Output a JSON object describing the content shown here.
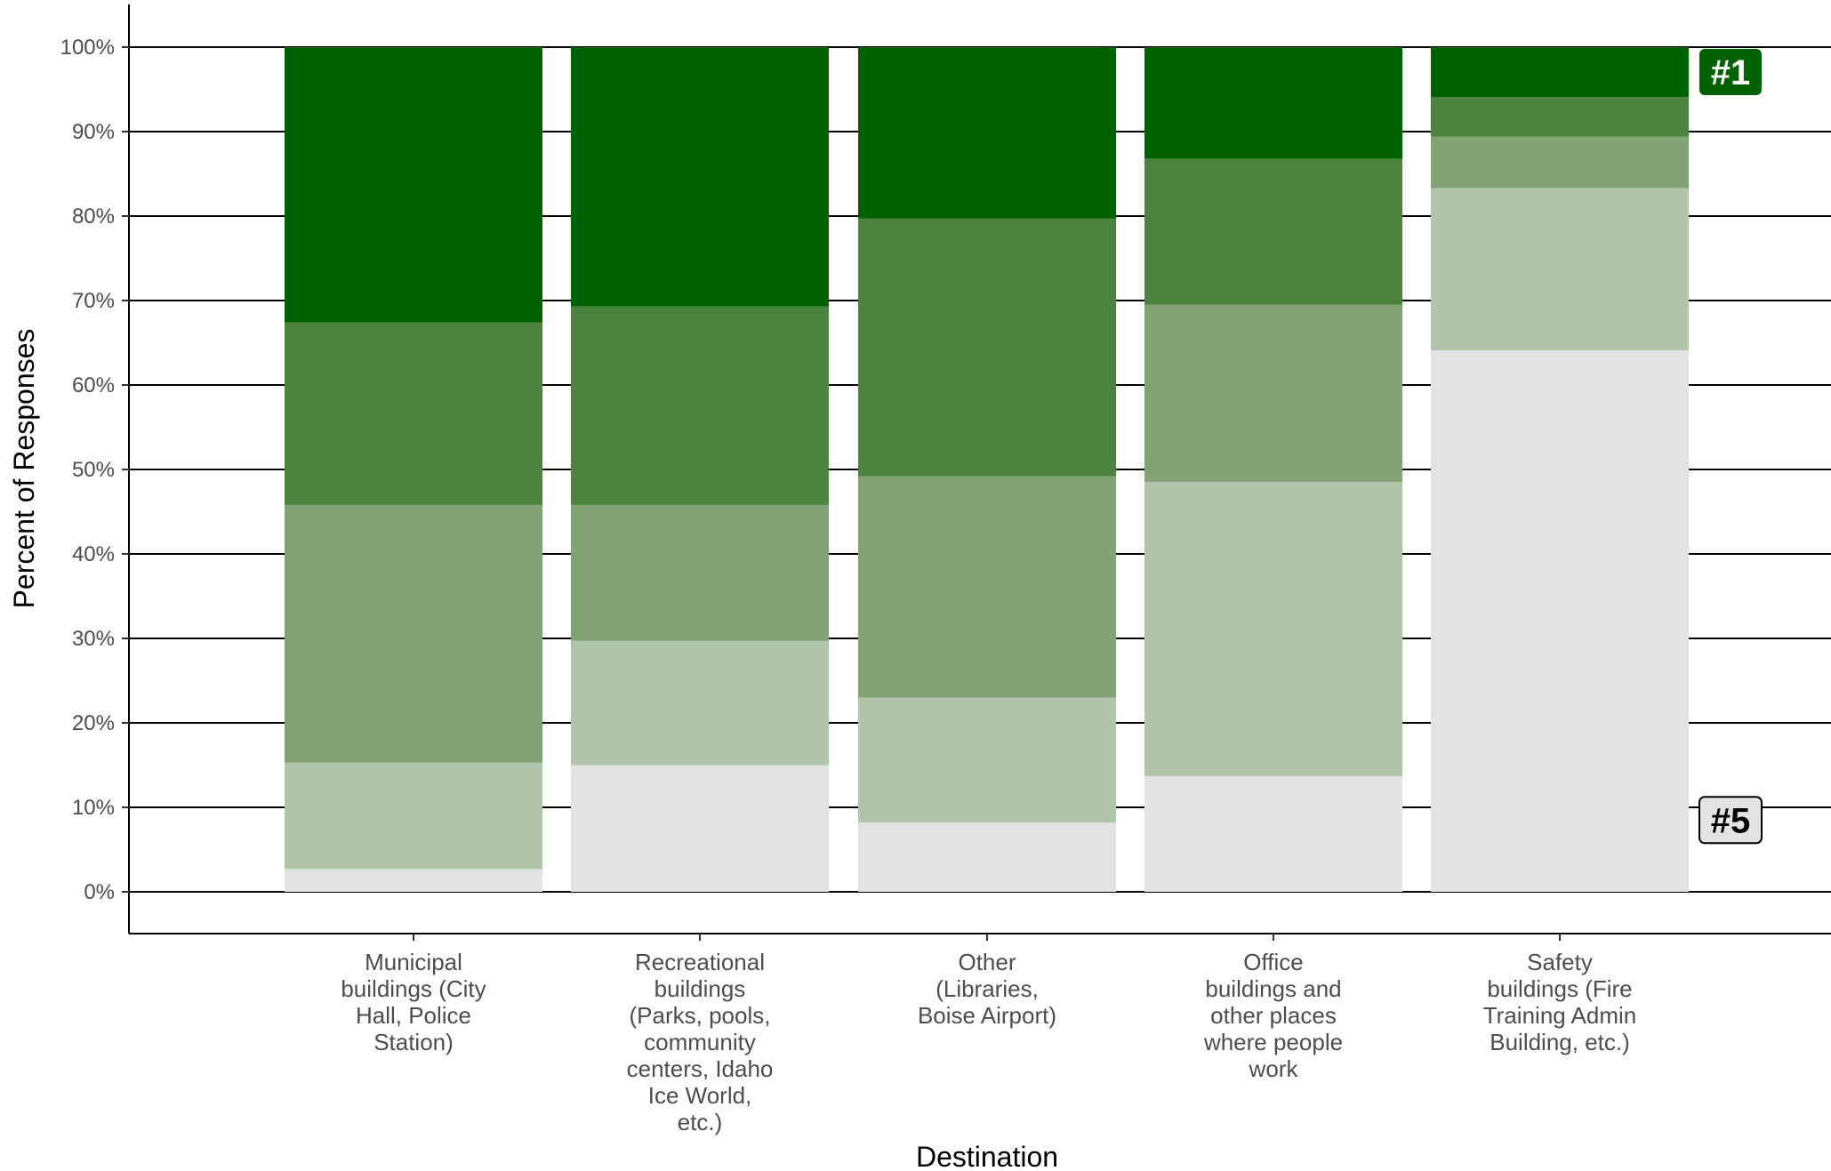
{
  "chart_data": {
    "type": "bar",
    "stacked": true,
    "percent": true,
    "title": "",
    "xlabel": "Destination",
    "ylabel": "Percent of Responses",
    "ylim": [
      0,
      100
    ],
    "y_ticks": [
      0,
      10,
      20,
      30,
      40,
      50,
      60,
      70,
      80,
      90,
      100
    ],
    "y_tick_labels": [
      "0%",
      "10%",
      "20%",
      "30%",
      "40%",
      "50%",
      "60%",
      "70%",
      "80%",
      "90%",
      "100%"
    ],
    "grid": "horizontal major",
    "categories": [
      [
        "Municipal",
        "buildings (City",
        "Hall, Police",
        "Station)"
      ],
      [
        "Recreational",
        "buildings",
        "(Parks, pools,",
        "community",
        "centers, Idaho",
        "Ice World,",
        "etc.)"
      ],
      [
        "Other",
        "(Libraries,",
        "Boise Airport)"
      ],
      [
        "Office",
        "buildings and",
        "other places",
        "where people",
        "work"
      ],
      [
        "Safety",
        "buildings (Fire",
        "Training Admin",
        "Building, etc.)"
      ]
    ],
    "series": [
      {
        "rank": 5,
        "color": "#e3e3e3",
        "values": [
          2.7,
          15.0,
          8.2,
          13.7,
          64.1
        ]
      },
      {
        "rank": 4,
        "color": "#b1c5aa",
        "values": [
          12.6,
          14.7,
          14.8,
          34.8,
          19.2
        ]
      },
      {
        "rank": 3,
        "color": "#82a474",
        "values": [
          30.5,
          16.1,
          26.2,
          21.0,
          6.1
        ]
      },
      {
        "rank": 2,
        "color": "#4b833f",
        "values": [
          21.6,
          23.5,
          30.5,
          17.3,
          4.7
        ]
      },
      {
        "rank": 1,
        "color": "#006100",
        "values": [
          32.6,
          30.7,
          20.3,
          13.2,
          5.9
        ]
      }
    ],
    "annotations": [
      {
        "text": "#1",
        "series_rank": 1,
        "fill": "#006100",
        "text_color": "#ffffff"
      },
      {
        "text": "#5",
        "series_rank": 5,
        "fill": "#e3e3e3",
        "text_color": "#000000"
      }
    ]
  }
}
